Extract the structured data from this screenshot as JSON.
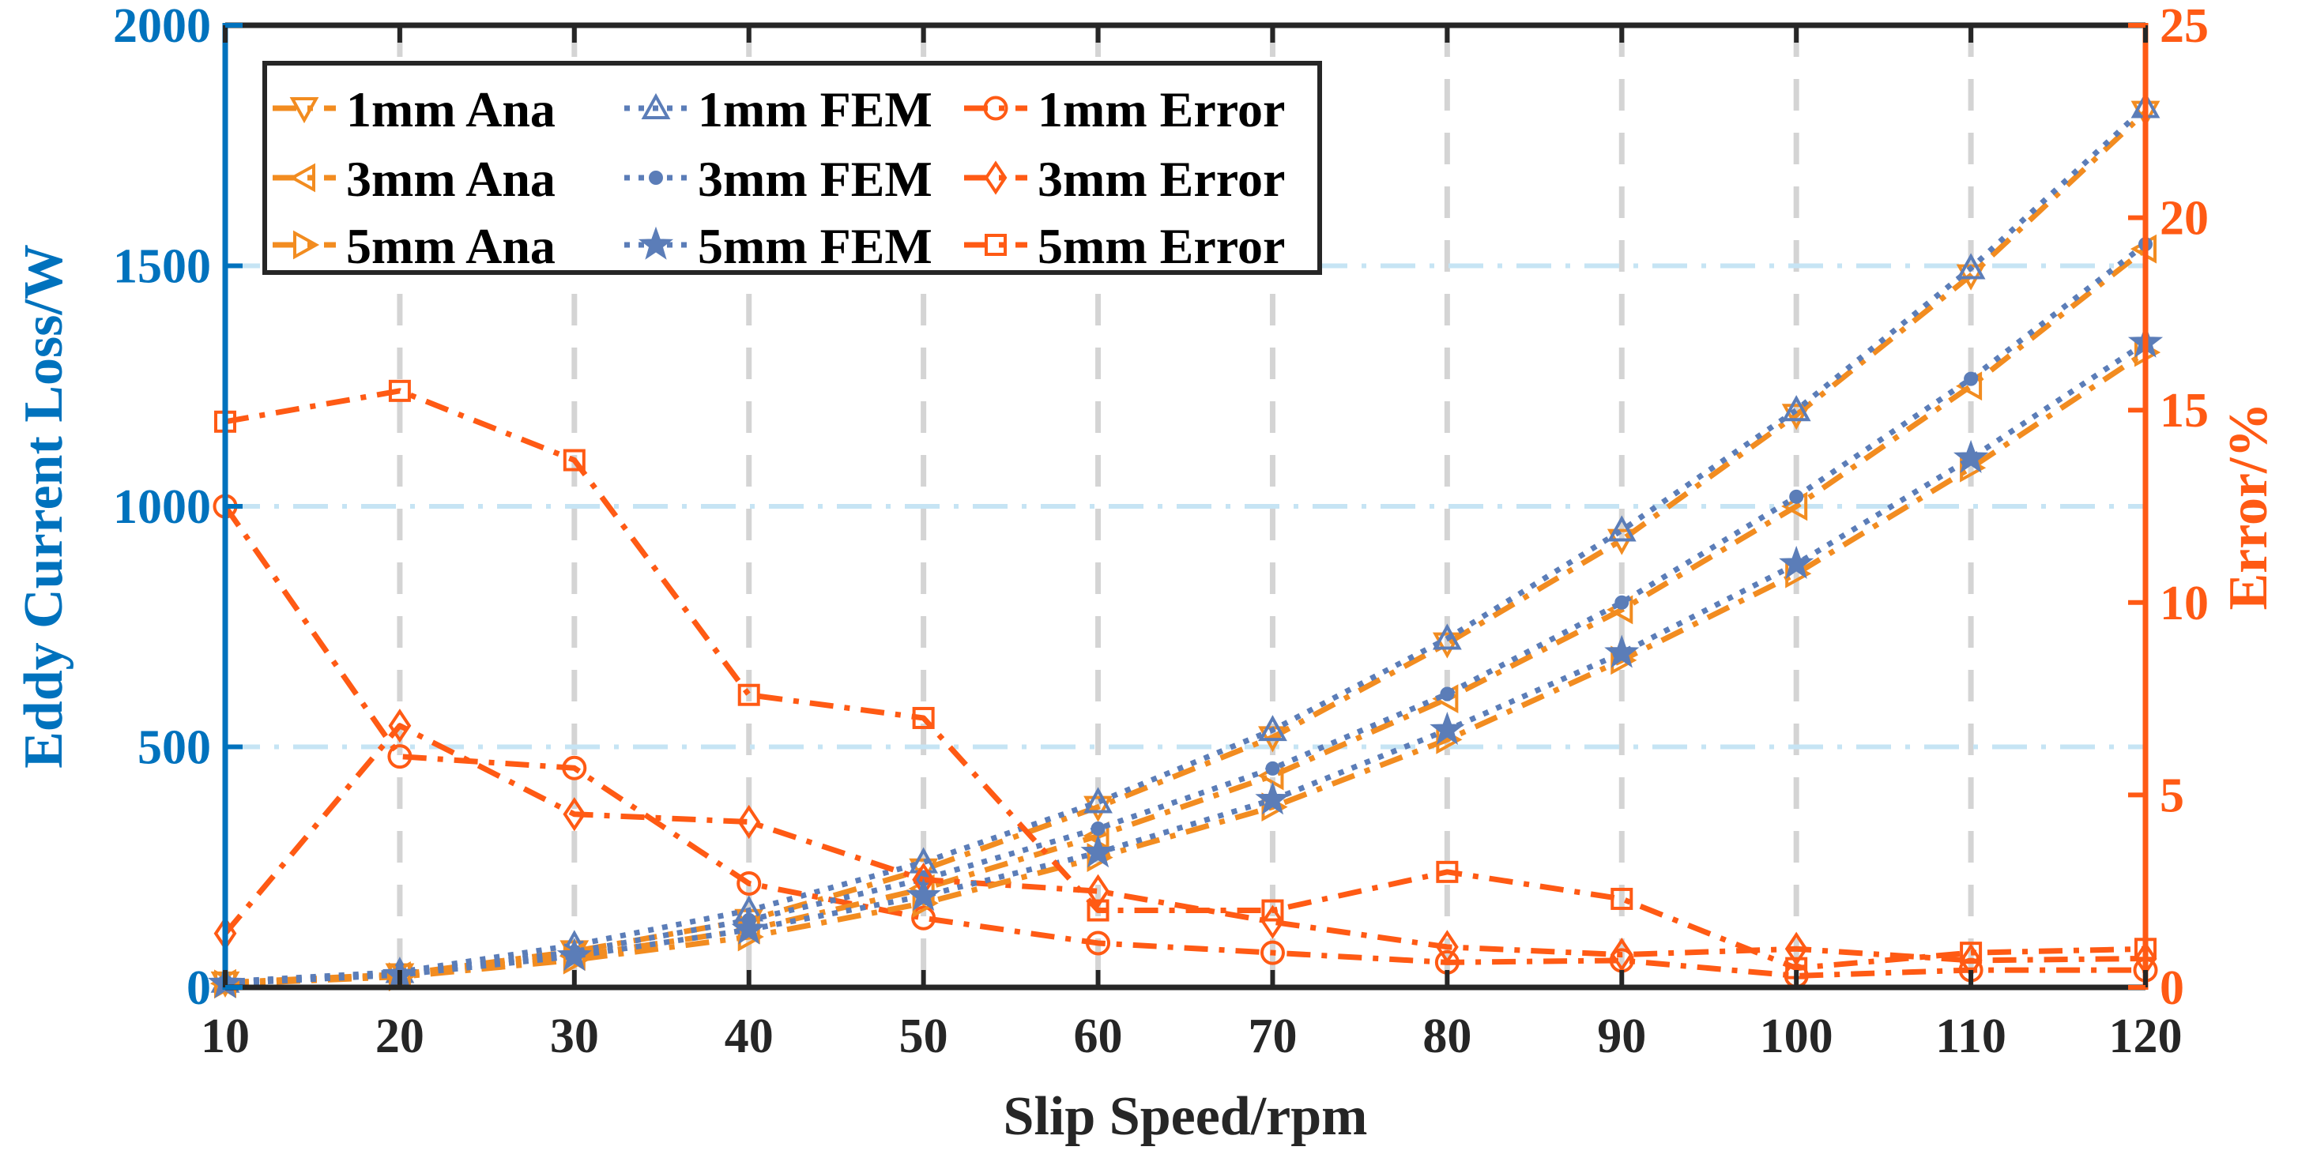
{
  "chart_data": {
    "type": "line",
    "x": [
      10,
      20,
      30,
      40,
      50,
      60,
      70,
      80,
      90,
      100,
      110,
      120
    ],
    "xlabel": "Slip Speed/rpm",
    "ylabel": "Eddy Current Loss/W",
    "y2label": "Error/%",
    "xlim": [
      10,
      120
    ],
    "ylim": [
      0,
      2000
    ],
    "y2lim": [
      0,
      25
    ],
    "xticks": [
      "10",
      "20",
      "30",
      "40",
      "50",
      "60",
      "70",
      "80",
      "90",
      "100",
      "110",
      "120"
    ],
    "yticks": [
      "0",
      "500",
      "1000",
      "1500",
      "2000"
    ],
    "y2ticks": [
      "0",
      "5",
      "10",
      "15",
      "20",
      "25"
    ],
    "grid": true,
    "legend_position": "top-left",
    "colors": {
      "left_axis": "#0072BD",
      "right_axis": "#FF5A14",
      "ana": "#F28C20",
      "fem": "#5B7DB8",
      "error": "#FF5A14",
      "grid_v": "#D4D4D4",
      "grid_h": "#C6E4F4"
    },
    "series": [
      {
        "name": "1mm Ana",
        "axis": "left",
        "marker": "triangle-down",
        "style": "dashdot",
        "color_key": "ana",
        "values": [
          10,
          27,
          75,
          140,
          245,
          375,
          520,
          715,
          930,
          1190,
          1480,
          1820
        ]
      },
      {
        "name": "1mm FEM",
        "axis": "left",
        "marker": "triangle-up",
        "style": "dotted",
        "color_key": "fem",
        "values": [
          12,
          32,
          88,
          160,
          260,
          385,
          535,
          725,
          950,
          1200,
          1495,
          1830
        ]
      },
      {
        "name": "1mm Error",
        "axis": "right",
        "marker": "circle",
        "style": "dashdot",
        "color_key": "error",
        "values": [
          12.5,
          6.0,
          5.7,
          2.7,
          1.8,
          1.15,
          0.9,
          0.65,
          0.7,
          0.3,
          0.45,
          0.45
        ]
      },
      {
        "name": "3mm Ana",
        "axis": "left",
        "marker": "triangle-left",
        "style": "dashdot",
        "color_key": "ana",
        "values": [
          8,
          24,
          65,
          120,
          205,
          315,
          440,
          600,
          785,
          1000,
          1250,
          1535
        ]
      },
      {
        "name": "3mm FEM",
        "axis": "left",
        "marker": "dot",
        "style": "dotted",
        "color_key": "fem",
        "values": [
          10,
          28,
          74,
          140,
          225,
          330,
          455,
          610,
          800,
          1020,
          1265,
          1545
        ]
      },
      {
        "name": "3mm Error",
        "axis": "right",
        "marker": "diamond",
        "style": "dashdot",
        "color_key": "error",
        "values": [
          1.4,
          6.8,
          4.5,
          4.3,
          2.8,
          2.5,
          1.7,
          1.05,
          0.85,
          1.0,
          0.7,
          0.75
        ]
      },
      {
        "name": "5mm Ana",
        "axis": "left",
        "marker": "triangle-right",
        "style": "dashdot",
        "color_key": "ana",
        "values": [
          7,
          22,
          57,
          105,
          175,
          270,
          375,
          515,
          680,
          860,
          1080,
          1320
        ]
      },
      {
        "name": "5mm FEM",
        "axis": "left",
        "marker": "star",
        "style": "dotted",
        "color_key": "fem",
        "values": [
          8,
          26,
          65,
          120,
          190,
          280,
          390,
          535,
          695,
          880,
          1100,
          1340
        ]
      },
      {
        "name": "5mm Error",
        "axis": "right",
        "marker": "square",
        "style": "dashdot",
        "color_key": "error",
        "values": [
          14.7,
          15.5,
          13.7,
          7.6,
          7.0,
          2.0,
          2.0,
          3.0,
          2.3,
          0.5,
          0.9,
          1.0
        ]
      }
    ]
  }
}
